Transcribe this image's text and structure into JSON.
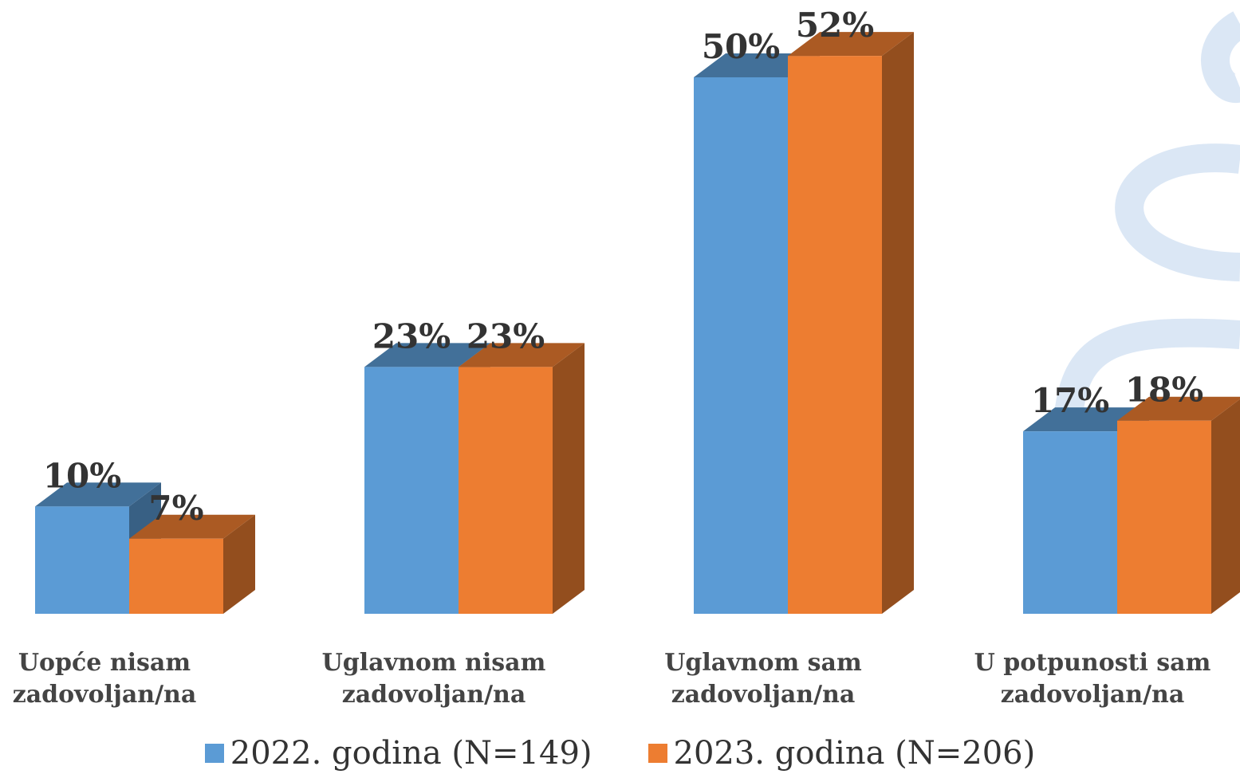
{
  "chart_data": {
    "type": "bar3d",
    "categories": [
      "Uopće nisam zadovoljan/na",
      "Uglavnom nisam zadovoljan/na",
      "Uglavnom sam zadovoljan/na",
      "U potpunosti sam zadovoljan/na"
    ],
    "series": [
      {
        "name": "2022. godina (N=149)",
        "color": "#5b9bd5",
        "values": [
          10,
          23,
          50,
          17
        ],
        "value_labels": [
          "10%",
          "23%",
          "50%",
          "17%"
        ]
      },
      {
        "name": "2023. godina (N=206)",
        "color": "#ed7d31",
        "values": [
          7,
          23,
          52,
          18
        ],
        "value_labels": [
          "7%",
          "23%",
          "52%",
          "18%"
        ]
      }
    ]
  }
}
